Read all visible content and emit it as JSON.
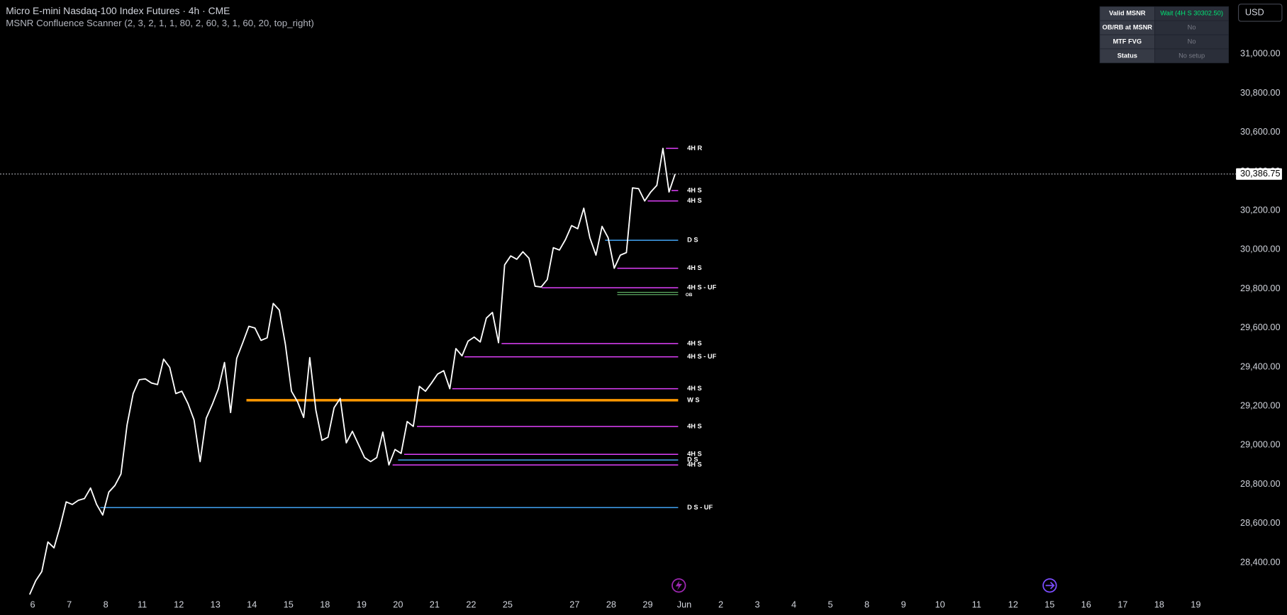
{
  "chart_data": {
    "type": "line",
    "title": "Micro E-mini Nasdaq-100 Index Futures · 4h · CME",
    "subtitle": "MSNR Confluence Scanner (2, 3, 2, 1, 1, 80, 2, 60, 3, 1, 60, 20, top_right)",
    "currency": "USD",
    "color": "#ffffff",
    "values": [
      28236,
      28307,
      28354,
      28505,
      28475,
      28584,
      28710,
      28697,
      28718,
      28727,
      28781,
      28697,
      28643,
      28760,
      28794,
      28853,
      29104,
      29264,
      29335,
      29339,
      29318,
      29310,
      29440,
      29398,
      29264,
      29276,
      29213,
      29129,
      28916,
      29138,
      29209,
      29289,
      29423,
      29167,
      29444,
      29524,
      29608,
      29599,
      29536,
      29549,
      29725,
      29691,
      29515,
      29276,
      29222,
      29142,
      29448,
      29180,
      29025,
      29041,
      29192,
      29239,
      29012,
      29071,
      29004,
      28937,
      28916,
      28937,
      29067,
      28899,
      28978,
      28958,
      29121,
      29096,
      29301,
      29276,
      29318,
      29364,
      29381,
      29289,
      29494,
      29457,
      29532,
      29553,
      29528,
      29650,
      29679,
      29524,
      29922,
      29968,
      29951,
      29989,
      29956,
      29813,
      29809,
      29847,
      30010,
      29998,
      30052,
      30123,
      30107,
      30212,
      30061,
      29972,
      30119,
      30061,
      29905,
      29972,
      29985,
      30316,
      30312,
      30249,
      30295,
      30329,
      30518,
      30295,
      30386.75
    ],
    "price_label": {
      "value": 30386.75,
      "label": "30,386.75"
    },
    "xlim": [
      -4.85,
      197.3
    ],
    "ylim": [
      28236.4,
      31276.8
    ],
    "xticks": [
      {
        "value": 0.5,
        "label": "6"
      },
      {
        "value": 6.5,
        "label": "7"
      },
      {
        "value": 12.5,
        "label": "8"
      },
      {
        "value": 18.5,
        "label": "11"
      },
      {
        "value": 24.5,
        "label": "12"
      },
      {
        "value": 30.5,
        "label": "13"
      },
      {
        "value": 36.5,
        "label": "14"
      },
      {
        "value": 42.5,
        "label": "15"
      },
      {
        "value": 48.5,
        "label": "18"
      },
      {
        "value": 54.5,
        "label": "19"
      },
      {
        "value": 60.5,
        "label": "20"
      },
      {
        "value": 66.5,
        "label": "21"
      },
      {
        "value": 72.5,
        "label": "22"
      },
      {
        "value": 78.5,
        "label": "25"
      },
      {
        "value": 89.5,
        "label": "27"
      },
      {
        "value": 95.5,
        "label": "28"
      },
      {
        "value": 101.5,
        "label": "29"
      },
      {
        "value": 107.5,
        "label": "Jun"
      },
      {
        "value": 113.5,
        "label": "2"
      },
      {
        "value": 119.5,
        "label": "3"
      },
      {
        "value": 125.5,
        "label": "4"
      },
      {
        "value": 131.5,
        "label": "5"
      },
      {
        "value": 137.5,
        "label": "8"
      },
      {
        "value": 143.5,
        "label": "9"
      },
      {
        "value": 149.5,
        "label": "10"
      },
      {
        "value": 155.5,
        "label": "11"
      },
      {
        "value": 161.5,
        "label": "12"
      },
      {
        "value": 167.5,
        "label": "15"
      },
      {
        "value": 173.5,
        "label": "16"
      },
      {
        "value": 179.5,
        "label": "17"
      },
      {
        "value": 185.5,
        "label": "18"
      },
      {
        "value": 191.5,
        "label": "19"
      }
    ],
    "yticks": [
      {
        "value": 28400,
        "label": "28,400.00"
      },
      {
        "value": 28600,
        "label": "28,600.00"
      },
      {
        "value": 28800,
        "label": "28,800.00"
      },
      {
        "value": 29000,
        "label": "29,000.00"
      },
      {
        "value": 29200,
        "label": "29,200.00"
      },
      {
        "value": 29400,
        "label": "29,400.00"
      },
      {
        "value": 29600,
        "label": "29,600.00"
      },
      {
        "value": 29800,
        "label": "29,800.00"
      },
      {
        "value": 30000,
        "label": "30,000.00"
      },
      {
        "value": 30200,
        "label": "30,200.00"
      },
      {
        "value": 30400,
        "label": "30,400.00"
      },
      {
        "value": 30600,
        "label": "30,600.00"
      },
      {
        "value": 30800,
        "label": "30,800.00"
      },
      {
        "value": 31000,
        "label": "31,000.00"
      }
    ],
    "grid": false,
    "levels": [
      {
        "label": "4H R",
        "value": 30518,
        "start": 104.5,
        "color": "#e040fb",
        "width": 1.3
      },
      {
        "label": "4H S",
        "value": 30302.5,
        "start": 105.4,
        "color": "#e040fb",
        "width": 1.3
      },
      {
        "label": "4H S",
        "value": 30249,
        "start": 101.5,
        "color": "#e040fb",
        "width": 1.3
      },
      {
        "label": "D S",
        "value": 30048,
        "start": 94.5,
        "color": "#42a5f5",
        "width": 1.3
      },
      {
        "label": "4H S",
        "value": 29905,
        "start": 96.5,
        "color": "#e040fb",
        "width": 1.3
      },
      {
        "label": "4H S - UF",
        "value": 29805,
        "start": 84.1,
        "color": "#e040fb",
        "width": 1.3
      },
      {
        "label": "4H S",
        "value": 29520,
        "start": 77.5,
        "color": "#e040fb",
        "width": 1.3
      },
      {
        "label": "4H S - UF",
        "value": 29452,
        "start": 71.4,
        "color": "#e040fb",
        "width": 1.3
      },
      {
        "label": "4H S",
        "value": 29289,
        "start": 69.4,
        "color": "#e040fb",
        "width": 1.3
      },
      {
        "label": "W S",
        "value": 29230,
        "start": 35.6,
        "color": "#ff9800",
        "width": 3
      },
      {
        "label": "4H S",
        "value": 29096,
        "start": 63.6,
        "color": "#e040fb",
        "width": 1.3
      },
      {
        "label": "4H S",
        "value": 28953,
        "start": 61.5,
        "color": "#e040fb",
        "width": 1.3
      },
      {
        "label": "D S",
        "value": 28924,
        "start": 60.5,
        "color": "#42a5f5",
        "width": 1.3
      },
      {
        "label": "4H S",
        "value": 28899,
        "start": 59.6,
        "color": "#e040fb",
        "width": 1.3
      },
      {
        "label": "D S - UF",
        "value": 28681,
        "start": 11.6,
        "color": "#42a5f5",
        "width": 1.3
      }
    ],
    "order_block": {
      "label": "OB",
      "values": [
        29782,
        29770
      ],
      "start": 96.5,
      "color": "#66bb6a"
    },
    "table": {
      "rows": [
        [
          "Valid MSNR",
          "Wait (4H S 30302.50)"
        ],
        [
          "OB/RB at MSNR",
          "No"
        ],
        [
          "MTF FVG",
          "No"
        ],
        [
          "Status",
          "No setup"
        ]
      ]
    }
  }
}
